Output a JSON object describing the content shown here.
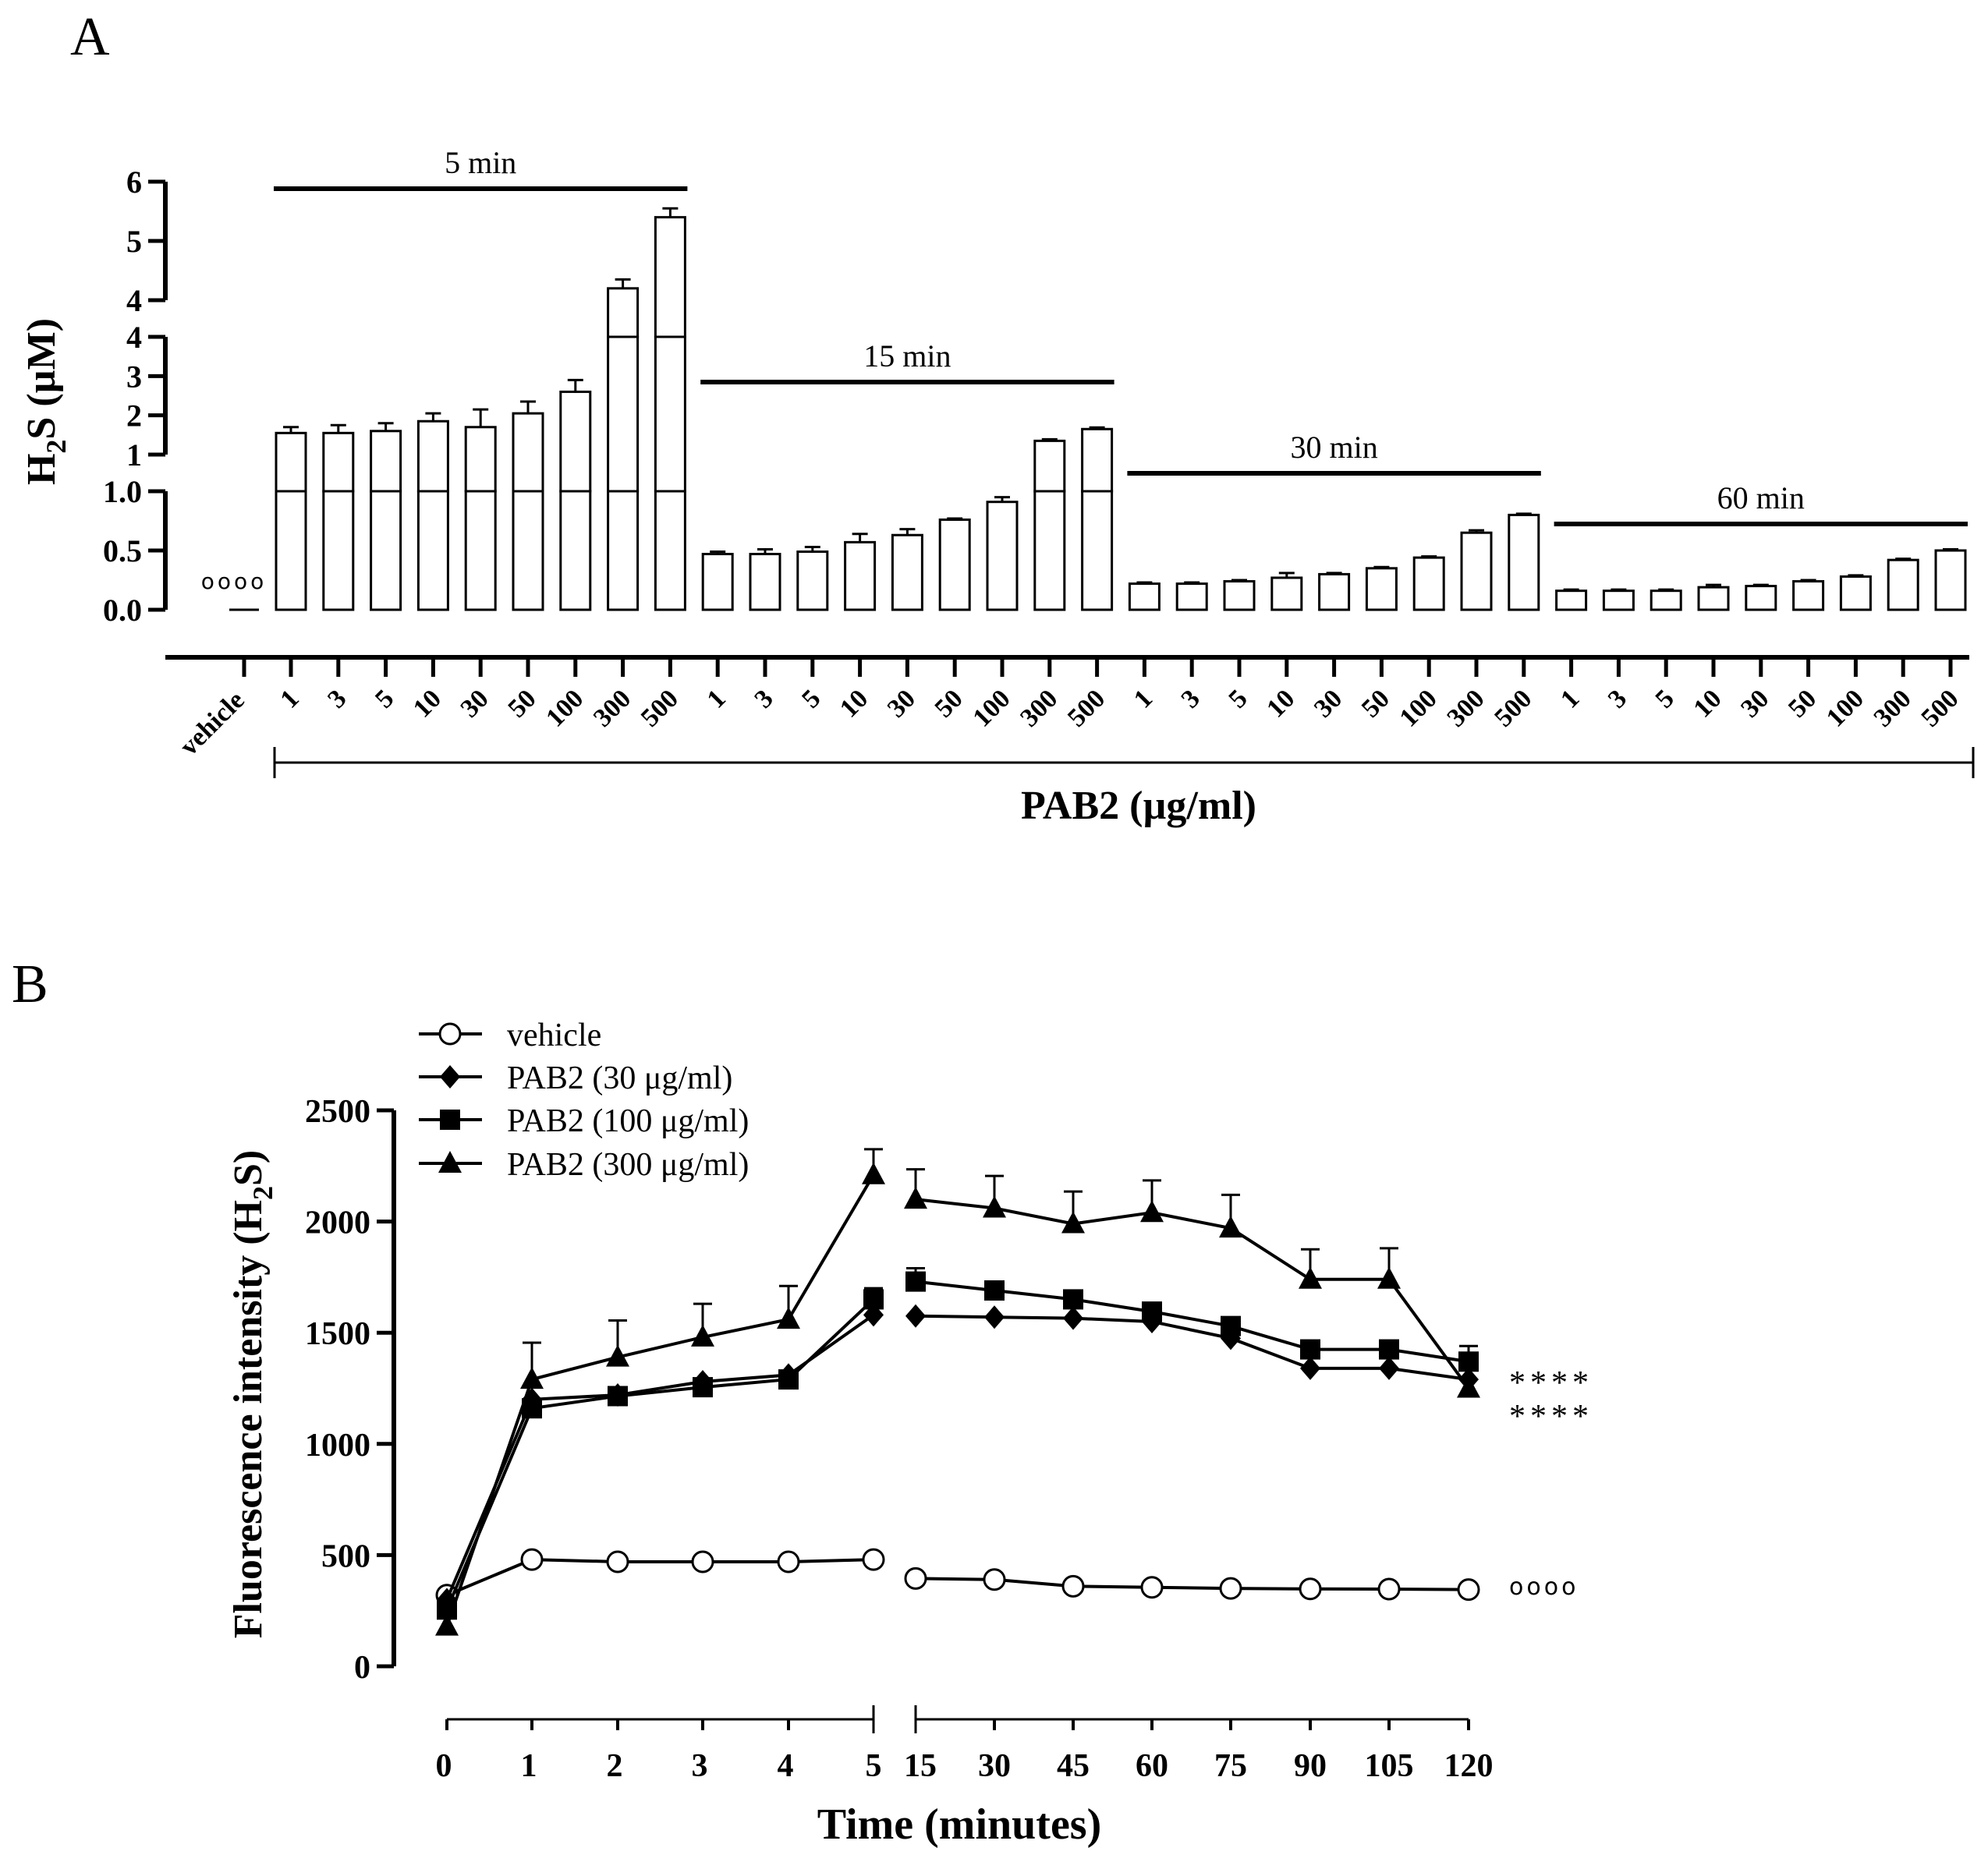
{
  "colors": {
    "ink": "#000000",
    "background": "#ffffff",
    "bar_fill": "#ffffff"
  },
  "chart_data": [
    {
      "panel": "A",
      "type": "bar",
      "ylabel_main": "H",
      "ylabel_sub": "2",
      "ylabel_rest": "S (µM)",
      "xlabel": "PAB2 (µg/ml)",
      "y_segments": [
        {
          "range": [
            0,
            1
          ],
          "ticks": [
            "0.0",
            "0.5",
            "1.0"
          ],
          "tick_values": [
            0,
            0.5,
            1.0
          ]
        },
        {
          "range": [
            1,
            4
          ],
          "ticks": [
            "1",
            "2",
            "3",
            "4"
          ],
          "tick_values": [
            1,
            2,
            3,
            4
          ]
        },
        {
          "range": [
            4,
            6
          ],
          "ticks": [
            "4",
            "5",
            "6"
          ],
          "tick_values": [
            4,
            5,
            6
          ]
        }
      ],
      "vehicle": {
        "label": "vehicle",
        "value": 0.0,
        "annotation": "oooo"
      },
      "dose_labels": [
        "1",
        "3",
        "5",
        "10",
        "30",
        "50",
        "100",
        "300",
        "500"
      ],
      "groups": [
        {
          "label": "5 min",
          "values": [
            1.55,
            1.55,
            1.6,
            1.85,
            1.7,
            2.05,
            2.6,
            4.2,
            5.4
          ],
          "errors": [
            0.15,
            0.2,
            0.2,
            0.2,
            0.45,
            0.3,
            0.3,
            0.15,
            0.15
          ]
        },
        {
          "label": "15 min",
          "values": [
            0.47,
            0.47,
            0.49,
            0.57,
            0.63,
            0.76,
            0.91,
            1.35,
            1.65
          ],
          "errors": [
            0.02,
            0.04,
            0.04,
            0.07,
            0.05,
            0.01,
            0.04,
            0.04,
            0.04
          ]
        },
        {
          "label": "30 min",
          "values": [
            0.22,
            0.22,
            0.24,
            0.27,
            0.3,
            0.35,
            0.44,
            0.65,
            0.8
          ],
          "errors": [
            0.01,
            0.01,
            0.01,
            0.04,
            0.01,
            0.01,
            0.01,
            0.02,
            0.01
          ]
        },
        {
          "label": "60 min",
          "values": [
            0.16,
            0.16,
            0.16,
            0.19,
            0.2,
            0.24,
            0.28,
            0.42,
            0.5
          ],
          "errors": [
            0.01,
            0.01,
            0.01,
            0.02,
            0.01,
            0.01,
            0.01,
            0.01,
            0.01
          ]
        }
      ]
    },
    {
      "panel": "B",
      "type": "line",
      "ylabel_main": "Fluorescence intensity (H",
      "ylabel_sub": "2",
      "ylabel_rest": "S)",
      "xlabel": "Time (minutes)",
      "ylim": [
        0,
        2500
      ],
      "yticks": [
        0,
        500,
        1000,
        1500,
        2000,
        2500
      ],
      "x_left": [
        "0",
        "1",
        "2",
        "3",
        "4",
        "5"
      ],
      "x_right": [
        "15",
        "30",
        "45",
        "60",
        "75",
        "90",
        "105",
        "120"
      ],
      "series": [
        {
          "name": "vehicle",
          "marker": "open-circle",
          "values": [
            320,
            480,
            470,
            470,
            470,
            480,
            395,
            390,
            360,
            355,
            350,
            348,
            347,
            345
          ],
          "errors": [
            0,
            0,
            0,
            0,
            0,
            0,
            0,
            0,
            0,
            0,
            0,
            0,
            0,
            0
          ]
        },
        {
          "name": "PAB2 (30 μg/ml)",
          "marker": "diamond",
          "values": [
            300,
            1200,
            1220,
            1280,
            1310,
            1580,
            1575,
            1570,
            1565,
            1550,
            1475,
            1340,
            1340,
            1290
          ],
          "errors": [
            0,
            0,
            0,
            0,
            0,
            0,
            0,
            0,
            0,
            0,
            0,
            0,
            0,
            0
          ]
        },
        {
          "name": "PAB2 (100 μg/ml)",
          "marker": "square",
          "values": [
            255,
            1160,
            1215,
            1255,
            1290,
            1650,
            1730,
            1690,
            1650,
            1595,
            1530,
            1425,
            1425,
            1370
          ],
          "errors": [
            0,
            0,
            0,
            0,
            0,
            50,
            60,
            40,
            30,
            30,
            30,
            30,
            30,
            70
          ]
        },
        {
          "name": "PAB2 (300 μg/ml)",
          "marker": "triangle",
          "values": [
            180,
            1290,
            1390,
            1480,
            1560,
            2210,
            2100,
            2060,
            1990,
            2040,
            1970,
            1740,
            1740,
            1250
          ],
          "errors": [
            0,
            165,
            165,
            150,
            150,
            115,
            135,
            145,
            145,
            145,
            150,
            135,
            140,
            0
          ]
        }
      ],
      "significance": [
        {
          "text": "****",
          "series": "PAB2 (300 μg/ml)"
        },
        {
          "text": "****",
          "series": "PAB2 (30 μg/ml)"
        },
        {
          "text": "oooo",
          "series": "vehicle"
        }
      ]
    }
  ]
}
